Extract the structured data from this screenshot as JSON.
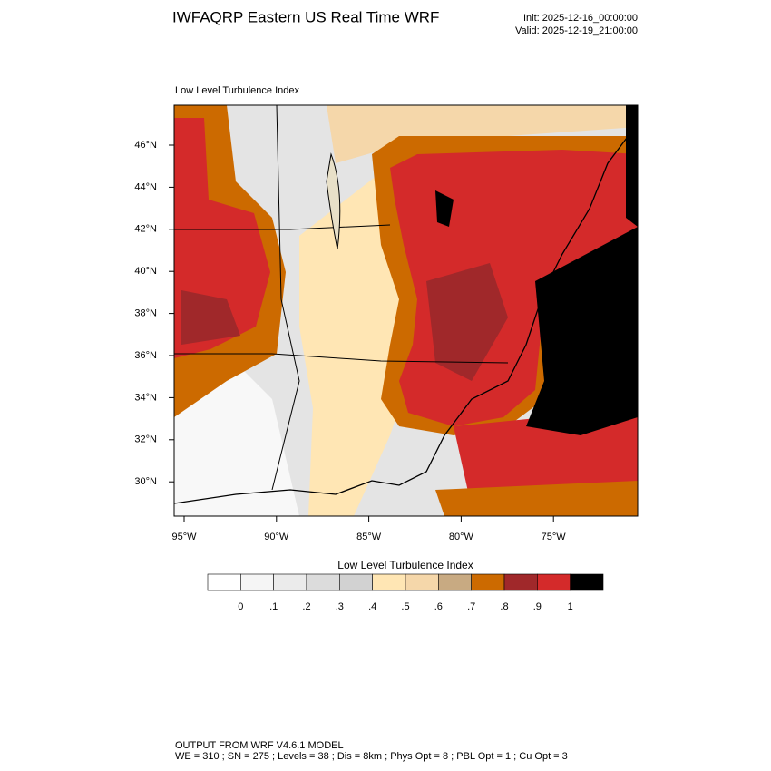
{
  "header": {
    "title": "IWFAQRP Eastern US Real Time WRF",
    "init": "Init: 2025-12-16_00:00:00",
    "valid": "Valid: 2025-12-19_21:00:00"
  },
  "map": {
    "title": "Low Level Turbulence Index",
    "lat_labels": [
      "46°N",
      "44°N",
      "42°N",
      "40°N",
      "38°N",
      "36°N",
      "34°N",
      "32°N",
      "30°N"
    ],
    "lon_labels": [
      "95°W",
      "90°W",
      "85°W",
      "80°W",
      "75°W"
    ]
  },
  "colorbar": {
    "title": "Low Level Turbulence Index",
    "labels": [
      "0",
      ".1",
      ".2",
      ".3",
      ".4",
      ".5",
      ".6",
      ".7",
      ".8",
      ".9",
      "1"
    ],
    "colors": [
      "#ffffff",
      "#f5f5f5",
      "#ebebeb",
      "#dcdcdc",
      "#d2d2d2",
      "#ffe6b4",
      "#f5d7aa",
      "#c8aa82",
      "#cc6a00",
      "#a0282a",
      "#d42a2a",
      "#000000"
    ]
  },
  "footer": {
    "line1": "OUTPUT FROM WRF V4.6.1 MODEL",
    "line2": "WE = 310 ; SN = 275 ; Levels = 38 ; Dis = 8km ; Phys Opt = 8 ; PBL Opt = 1 ; Cu Opt = 3"
  }
}
